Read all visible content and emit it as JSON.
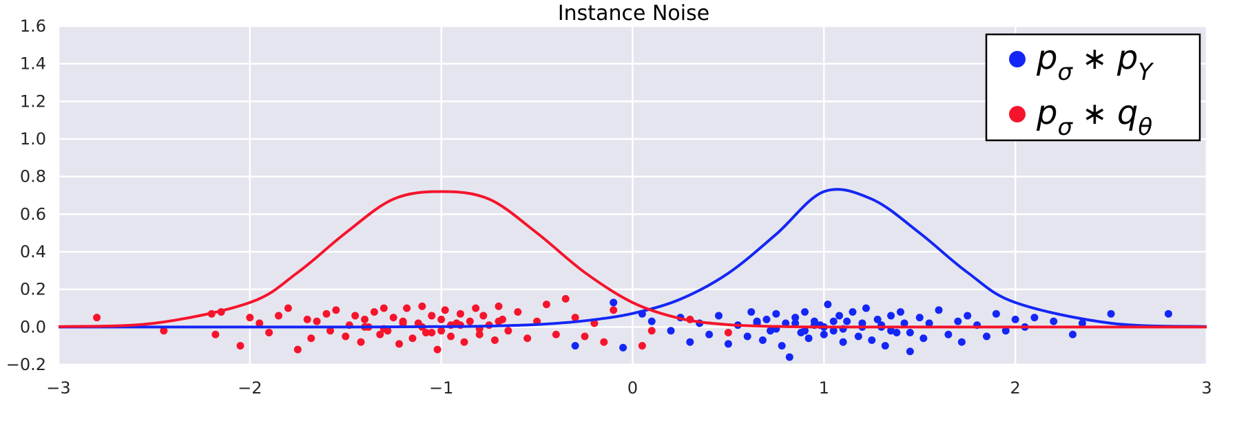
{
  "chart_data": {
    "type": "scatter",
    "title": "Instance Noise",
    "xlabel": "",
    "ylabel": "",
    "xlim": [
      -3,
      3
    ],
    "ylim": [
      -0.2,
      1.6
    ],
    "xticks": [
      -3,
      -2,
      -1,
      0,
      1,
      2,
      3
    ],
    "xtick_labels": [
      "−3",
      "−2",
      "−1",
      "0",
      "1",
      "2",
      "3"
    ],
    "yticks": [
      -0.2,
      0.0,
      0.2,
      0.4,
      0.6,
      0.8,
      1.0,
      1.2,
      1.4,
      1.6
    ],
    "ytick_labels": [
      "−0.2",
      "0.0",
      "0.2",
      "0.4",
      "0.6",
      "0.8",
      "1.0",
      "1.2",
      "1.4",
      "1.6"
    ],
    "grid": true,
    "legend_position": "top-right",
    "background": "#e5e5ef",
    "series": [
      {
        "legend": {
          "base": "p",
          "base_sub": "σ",
          "op": "∗",
          "target": "p",
          "target_sub": "Y"
        },
        "color": "#1426f5",
        "curve": {
          "x": [
            -3.0,
            -2.5,
            -2.0,
            -1.5,
            -1.0,
            -0.75,
            -0.5,
            -0.25,
            0.0,
            0.25,
            0.5,
            0.75,
            1.0,
            1.25,
            1.5,
            1.75,
            2.0,
            2.5,
            3.0
          ],
          "y": [
            0.0,
            0.0,
            0.0,
            0.0,
            0.002,
            0.005,
            0.013,
            0.033,
            0.072,
            0.148,
            0.286,
            0.493,
            0.72,
            0.68,
            0.5,
            0.29,
            0.13,
            0.02,
            0.002
          ]
        },
        "points": {
          "x": [
            -0.3,
            -0.1,
            -0.05,
            0.05,
            0.1,
            0.2,
            0.25,
            0.3,
            0.35,
            0.4,
            0.45,
            0.5,
            0.55,
            0.6,
            0.62,
            0.65,
            0.68,
            0.7,
            0.72,
            0.75,
            0.78,
            0.8,
            0.82,
            0.85,
            0.88,
            0.9,
            0.92,
            0.95,
            0.98,
            1.0,
            1.02,
            1.05,
            1.08,
            1.1,
            1.12,
            1.15,
            1.18,
            1.2,
            1.22,
            1.25,
            1.28,
            1.3,
            1.32,
            1.35,
            1.38,
            1.4,
            1.42,
            1.45,
            1.5,
            1.52,
            1.55,
            1.6,
            1.65,
            1.7,
            1.72,
            1.75,
            1.8,
            1.85,
            1.9,
            1.95,
            2.0,
            2.05,
            2.1,
            2.2,
            2.3,
            2.35,
            2.5,
            2.8,
            0.9,
            1.0,
            1.1,
            1.3,
            0.85,
            1.45,
            1.05,
            0.75,
            1.2,
            0.95,
            1.35,
            0.65
          ],
          "y": [
            -0.1,
            0.13,
            -0.11,
            0.07,
            0.03,
            -0.02,
            0.05,
            -0.08,
            0.02,
            -0.04,
            0.06,
            -0.09,
            0.01,
            -0.05,
            0.08,
            0.03,
            -0.07,
            0.04,
            -0.02,
            0.07,
            -0.1,
            0.02,
            -0.16,
            0.05,
            -0.03,
            0.08,
            -0.06,
            0.03,
            0.01,
            -0.04,
            0.12,
            -0.02,
            0.06,
            -0.08,
            0.03,
            0.08,
            -0.05,
            0.02,
            0.1,
            -0.07,
            0.04,
            0.0,
            -0.1,
            0.06,
            -0.03,
            0.08,
            0.02,
            -0.13,
            0.05,
            -0.06,
            0.02,
            0.09,
            -0.04,
            0.03,
            -0.08,
            0.06,
            0.01,
            -0.05,
            0.07,
            -0.02,
            0.04,
            0.0,
            0.05,
            0.03,
            -0.04,
            0.02,
            0.07,
            0.07,
            -0.02,
            0.0,
            -0.01,
            0.01,
            0.02,
            -0.03,
            0.03,
            -0.01,
            0.0,
            0.01,
            -0.02,
            0.02
          ]
        }
      },
      {
        "legend": {
          "base": "p",
          "base_sub": "σ",
          "op": "∗",
          "target": "q",
          "target_sub": "θ"
        },
        "color": "#f5142b",
        "curve": {
          "x": [
            -3.0,
            -2.5,
            -2.0,
            -1.75,
            -1.5,
            -1.25,
            -1.0,
            -0.75,
            -0.5,
            -0.25,
            0.0,
            0.25,
            0.5,
            0.75,
            1.0,
            1.5,
            2.0,
            2.5,
            3.0
          ],
          "y": [
            0.002,
            0.02,
            0.13,
            0.29,
            0.5,
            0.68,
            0.72,
            0.68,
            0.5,
            0.29,
            0.13,
            0.045,
            0.012,
            0.003,
            0.0,
            0.0,
            0.0,
            0.0,
            0.0
          ]
        },
        "points": {
          "x": [
            -2.8,
            -2.45,
            -2.2,
            -2.18,
            -2.15,
            -2.05,
            -2.0,
            -1.95,
            -1.9,
            -1.85,
            -1.8,
            -1.75,
            -1.7,
            -1.68,
            -1.65,
            -1.6,
            -1.58,
            -1.55,
            -1.5,
            -1.48,
            -1.45,
            -1.42,
            -1.4,
            -1.38,
            -1.35,
            -1.32,
            -1.3,
            -1.28,
            -1.25,
            -1.22,
            -1.2,
            -1.18,
            -1.15,
            -1.12,
            -1.1,
            -1.08,
            -1.05,
            -1.02,
            -1.0,
            -0.98,
            -0.95,
            -0.92,
            -0.9,
            -0.88,
            -0.85,
            -0.82,
            -0.8,
            -0.78,
            -0.75,
            -0.72,
            -0.7,
            -0.68,
            -0.65,
            -0.6,
            -0.55,
            -0.5,
            -0.45,
            -0.4,
            -0.35,
            -0.3,
            -0.25,
            -0.2,
            -0.15,
            -0.1,
            0.05,
            0.1,
            0.3,
            0.5,
            -1.3,
            -1.1,
            -0.9,
            -1.0,
            -1.2,
            -0.8,
            -1.4,
            -0.7,
            -1.05,
            -0.95
          ],
          "y": [
            0.05,
            -0.02,
            0.07,
            -0.04,
            0.08,
            -0.1,
            0.05,
            0.02,
            -0.03,
            0.06,
            0.1,
            -0.12,
            0.04,
            -0.06,
            0.03,
            0.07,
            -0.02,
            0.09,
            -0.05,
            0.01,
            0.06,
            -0.08,
            0.04,
            0.0,
            0.08,
            -0.04,
            0.1,
            -0.02,
            0.05,
            -0.09,
            0.03,
            0.1,
            -0.06,
            0.02,
            0.11,
            -0.03,
            0.06,
            -0.12,
            0.04,
            0.09,
            -0.05,
            0.02,
            0.07,
            -0.08,
            0.03,
            0.1,
            -0.04,
            0.06,
            0.01,
            -0.07,
            0.11,
            0.04,
            -0.02,
            0.08,
            -0.06,
            0.03,
            0.12,
            -0.04,
            0.15,
            0.05,
            -0.05,
            0.02,
            -0.08,
            0.09,
            -0.1,
            -0.02,
            0.04,
            -0.03,
            -0.01,
            0.0,
            0.01,
            -0.02,
            0.02,
            -0.01,
            0.0,
            0.03,
            -0.03,
            0.01
          ]
        }
      }
    ]
  }
}
